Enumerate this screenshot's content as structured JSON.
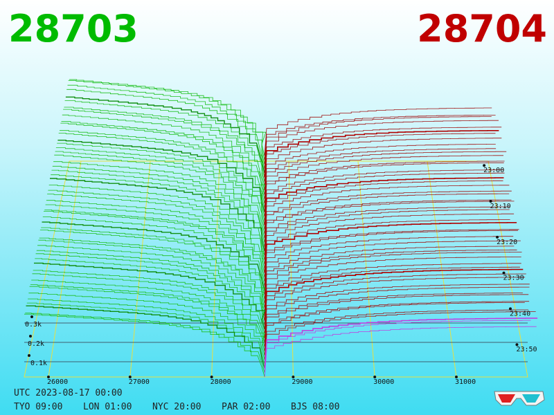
{
  "header": {
    "bid_price": "28703",
    "ask_price": "28704"
  },
  "depth_axis": {
    "labels": [
      "0.3k",
      "0.2k",
      "0.1k"
    ]
  },
  "price_axis": {
    "labels": [
      "26000",
      "27000",
      "28000",
      "29000",
      "30000",
      "31000"
    ]
  },
  "time_axis": {
    "labels": [
      "23:00",
      "23:10",
      "23:20",
      "23:30",
      "23:40",
      "23:50"
    ]
  },
  "footer": {
    "utc": "UTC 2023-08-17 00:00",
    "clocks": [
      "TYO 09:00",
      "LON 01:00",
      "NYC 20:00",
      "PAR 02:00",
      "BJS 08:00"
    ]
  }
}
